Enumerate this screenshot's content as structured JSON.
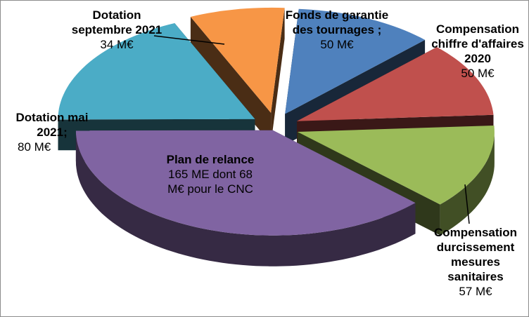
{
  "chart_data": {
    "type": "pie",
    "style": "3d-exploded",
    "slices": [
      {
        "name": "Fonds de garantie des tournages ;",
        "value_label": "50 M€",
        "value": 50,
        "color": "#4f81bd"
      },
      {
        "name": "Compensation chiffre d'affaires 2020",
        "value_label": "50 M€",
        "value": 50,
        "color": "#c0504d"
      },
      {
        "name": "Compensation durcissement mesures sanitaires",
        "value_label": "57 M€",
        "value": 57,
        "color": "#9bbb59"
      },
      {
        "name": "Plan de relance",
        "value_label": "165  ME dont 68 M€ pour le CNC",
        "value": 165,
        "color": "#8064a2"
      },
      {
        "name": "Dotation mai 2021;",
        "value_label": "80 M€",
        "value": 80,
        "color": "#4bacc6"
      },
      {
        "name": "Dotation septembre 2021",
        "value_label": "34 M€",
        "value": 34,
        "color": "#f79646"
      }
    ]
  }
}
